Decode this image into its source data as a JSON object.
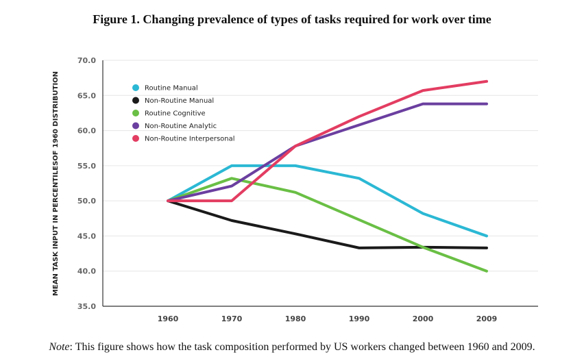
{
  "figure_title": "Figure 1. Changing prevalence of types of tasks required for work over time",
  "note": {
    "label": "Note",
    "text": ": This figure shows how the task composition performed by US workers changed between 1960 and 2009."
  },
  "chart_data": {
    "type": "line",
    "title": "",
    "xlabel": "",
    "ylabel": "MEAN TASK INPUT IN PERCENTILESOF 1960 DISTRIBUTION",
    "x": [
      "1960",
      "1970",
      "1980",
      "1990",
      "2000",
      "2009"
    ],
    "ylim": [
      35,
      70
    ],
    "yticks": [
      "70.0",
      "65.0",
      "60.0",
      "55.0",
      "50.0",
      "45.0",
      "40.0",
      "35.0"
    ],
    "legend_position": "top-left",
    "grid": true,
    "series": [
      {
        "name": "Routine Manual",
        "color": "#2bb8d4",
        "values": [
          50.0,
          55.0,
          55.0,
          53.2,
          48.2,
          45.0
        ]
      },
      {
        "name": "Non-Routine Manual",
        "color": "#1a1a1a",
        "values": [
          50.0,
          47.2,
          45.3,
          43.3,
          43.4,
          43.3
        ]
      },
      {
        "name": "Routine Cognitive",
        "color": "#6abf45",
        "values": [
          50.0,
          53.2,
          51.2,
          47.3,
          43.4,
          40.0
        ]
      },
      {
        "name": "Non-Routine Analytic",
        "color": "#6b3fa0",
        "values": [
          50.0,
          52.1,
          57.8,
          60.8,
          63.8,
          63.8
        ]
      },
      {
        "name": "Non-Routine Interpersonal",
        "color": "#e33d62",
        "values": [
          50.0,
          50.0,
          57.8,
          62.0,
          65.7,
          67.0
        ]
      }
    ]
  }
}
